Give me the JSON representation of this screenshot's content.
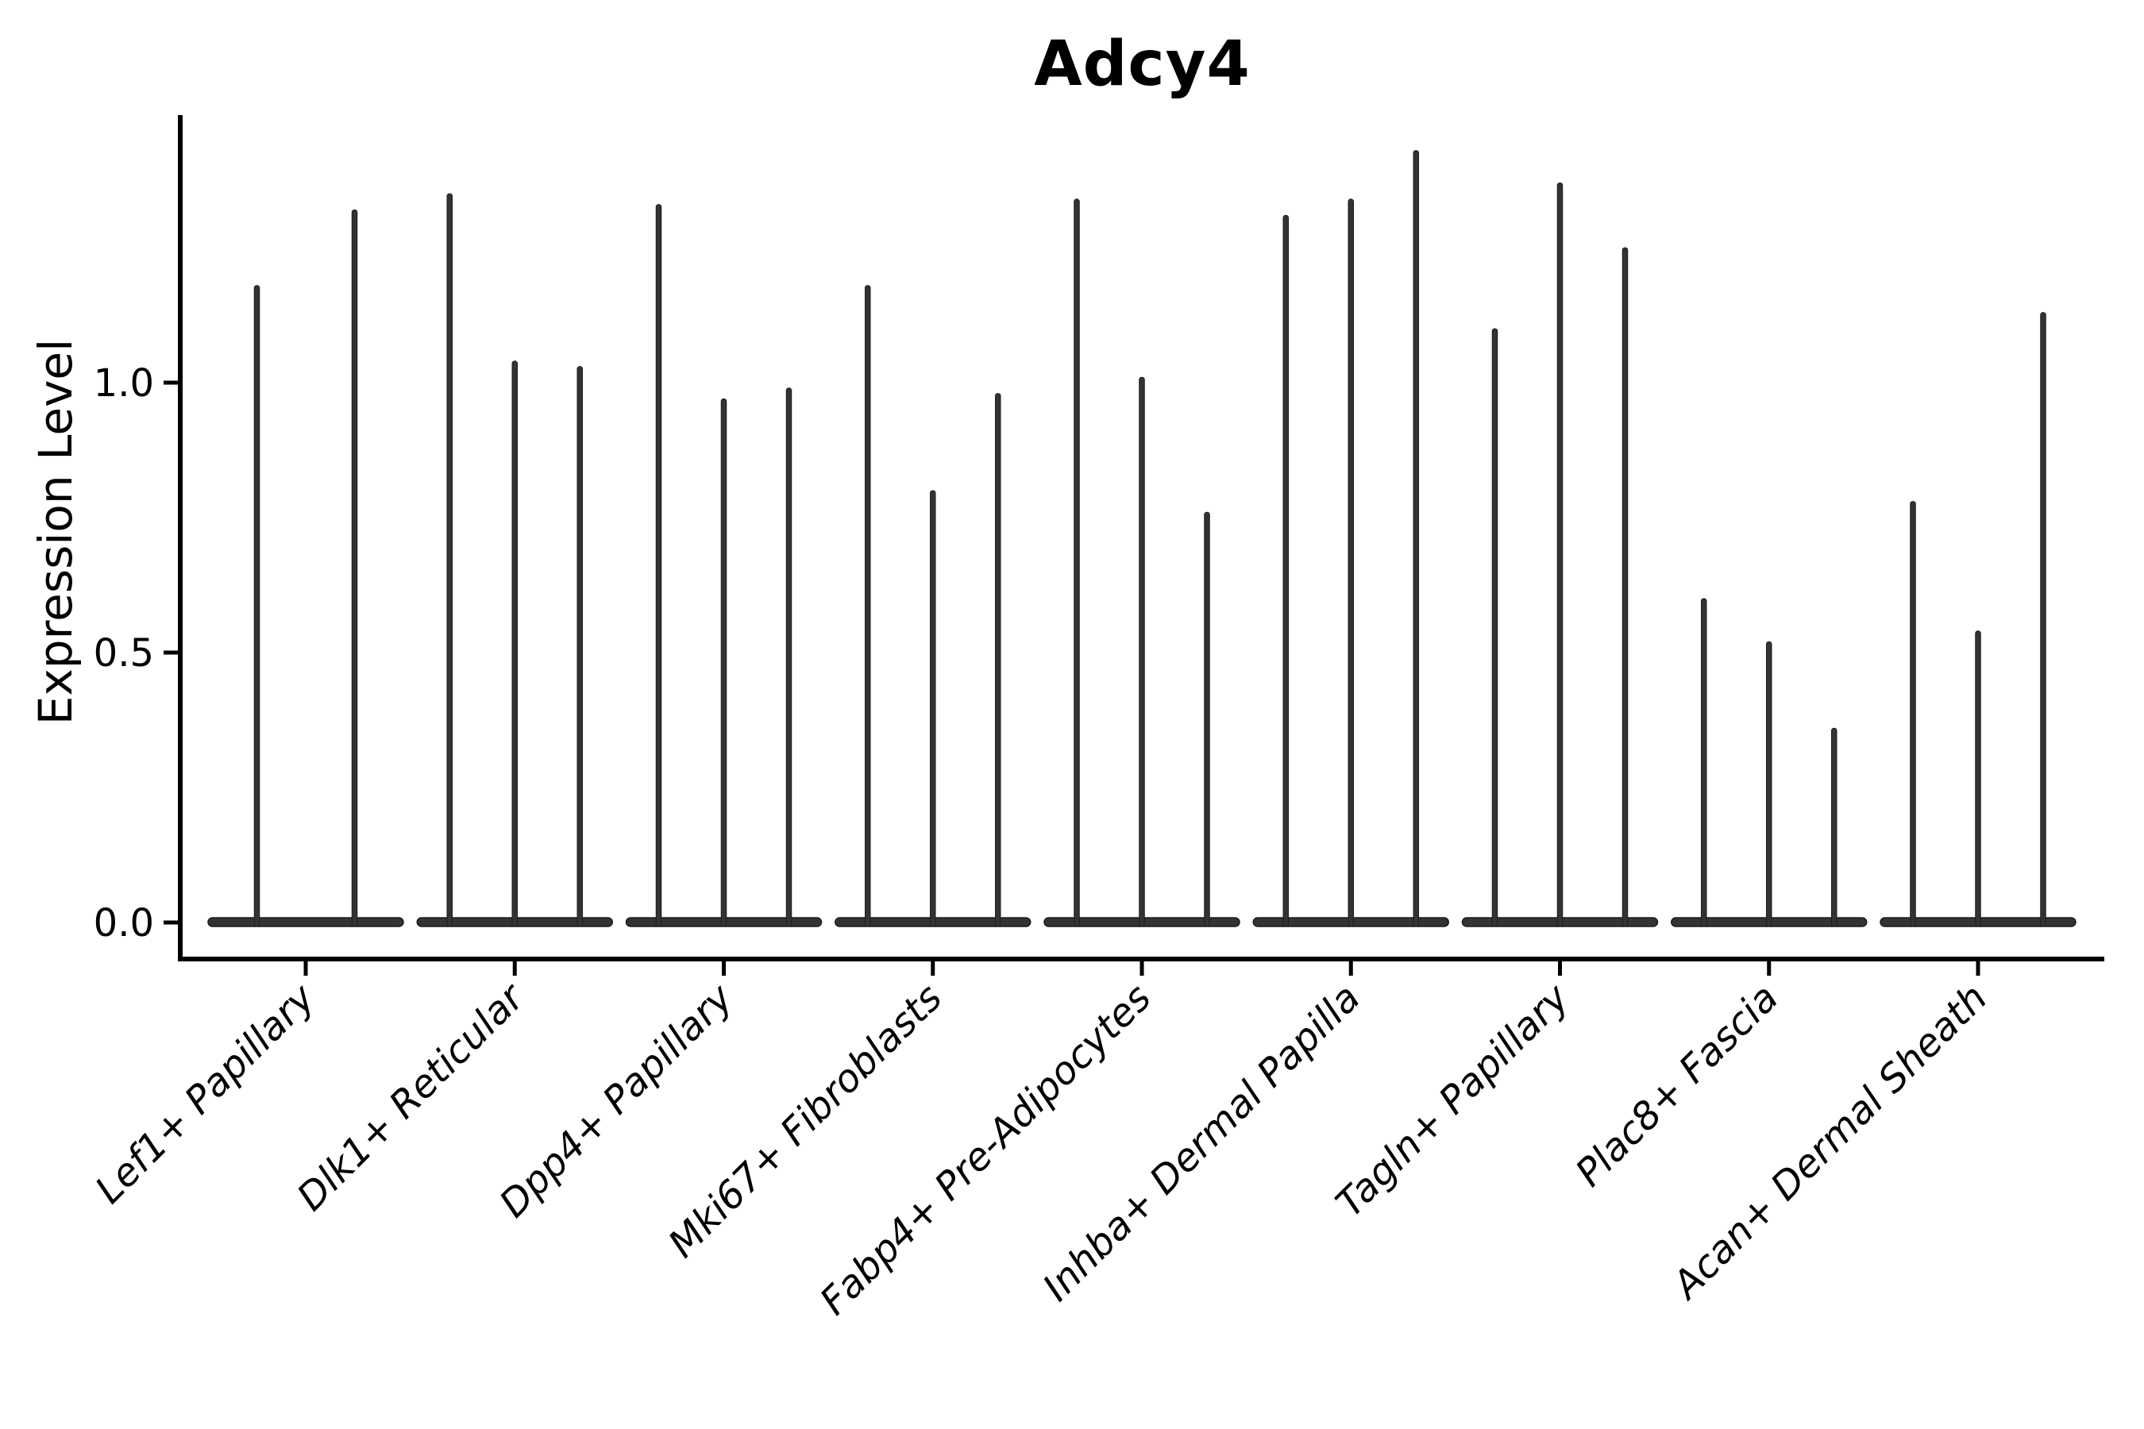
{
  "chart_data": {
    "type": "violin",
    "title": "Adcy4",
    "xlabel": "",
    "ylabel": "Expression Level",
    "yticks": [
      {
        "label": "0.0",
        "value": 0.0
      },
      {
        "label": "0.5",
        "value": 0.5
      },
      {
        "label": "1.0",
        "value": 1.0
      }
    ],
    "ylim": [
      -0.06,
      1.5
    ],
    "grid": false,
    "legend": "none",
    "categories": [
      "Lef1+ Papillary",
      "Dlk1+ Reticular",
      "Dpp4+ Papillary",
      "Mki67+ Fibroblasts",
      "Fabp4+ Pre-Adipocytes",
      "Inhba+ Dermal Papilla",
      "Tagln+ Papillary",
      "Plac8+ Fascia",
      "Acan+ Dermal Sheath"
    ],
    "groups": [
      {
        "label": "Lef1+ Papillary",
        "violin_max": [
          1.18,
          1.32
        ]
      },
      {
        "label": "Dlk1+ Reticular",
        "violin_max": [
          1.35,
          1.04,
          1.03
        ]
      },
      {
        "label": "Dpp4+ Papillary",
        "violin_max": [
          1.33,
          0.97,
          0.99
        ]
      },
      {
        "label": "Mki67+ Fibroblasts",
        "violin_max": [
          1.18,
          0.8,
          0.98
        ]
      },
      {
        "label": "Fabp4+ Pre-Adipocytes",
        "violin_max": [
          1.34,
          1.01,
          0.76
        ]
      },
      {
        "label": "Inhba+ Dermal Papilla",
        "violin_max": [
          1.31,
          1.34,
          1.43
        ]
      },
      {
        "label": "Tagln+ Papillary",
        "violin_max": [
          1.1,
          1.37,
          1.25
        ]
      },
      {
        "label": "Plac8+ Fascia",
        "violin_max": [
          0.6,
          0.52,
          0.36
        ]
      },
      {
        "label": "Acan+ Dermal Sheath",
        "violin_max": [
          0.78,
          0.54,
          1.13
        ]
      }
    ],
    "violins_baseline_value": 0.0,
    "colors": {
      "violin_fill": "#333333",
      "violin_edge": "#1c1c1c",
      "axis": "#000000",
      "text": "#000000",
      "background": "#ffffff"
    }
  }
}
